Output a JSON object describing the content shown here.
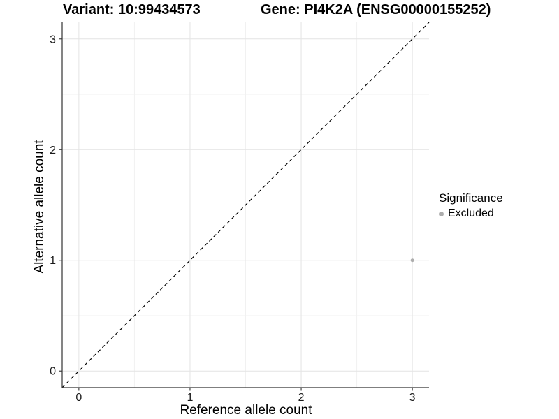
{
  "header": {
    "variant_title": "Variant: 10:99434573",
    "gene_title": "Gene: PI4K2A (ENSG00000155252)"
  },
  "chart_data": {
    "type": "scatter",
    "xlabel": "Reference allele count",
    "ylabel": "Alternative allele count",
    "xlim": [
      -0.15,
      3.15
    ],
    "ylim": [
      -0.15,
      3.15
    ],
    "x_ticks": [
      0,
      1,
      2,
      3
    ],
    "y_ticks": [
      0,
      1,
      2,
      3
    ],
    "x_minor_ticks": [
      0.5,
      1.5,
      2.5
    ],
    "y_minor_ticks": [
      0.5,
      1.5,
      2.5
    ],
    "grid": "major-and-minor",
    "series": [
      {
        "name": "Excluded",
        "color": "#adadad",
        "point_radius": 2.5,
        "points": [
          {
            "x": 3,
            "y": 1
          }
        ]
      }
    ],
    "reference_line": {
      "kind": "identity",
      "from": [
        -0.15,
        -0.15
      ],
      "to": [
        3.15,
        3.15
      ],
      "style": "dashed",
      "color": "#000000"
    },
    "legend": {
      "title": "Significance",
      "position": "right",
      "items": [
        {
          "label": "Excluded",
          "color": "#adadad"
        }
      ]
    },
    "colors": {
      "grid_major": "#e4e4e4",
      "grid_minor": "#f1f1f1",
      "axis_line": "#333333",
      "tick_mark": "#333333",
      "tick_label": "#1a1a1a",
      "background": "#ffffff"
    }
  }
}
